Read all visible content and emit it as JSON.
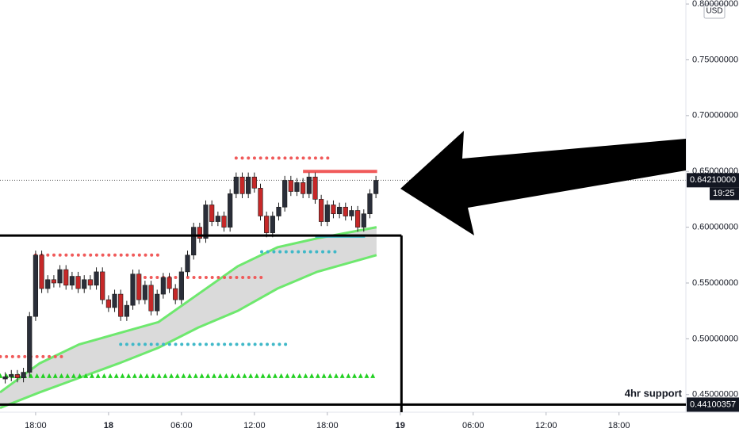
{
  "chart_data": {
    "type": "candlestick",
    "currency": "USD",
    "annotation": "4hr support",
    "last_price": {
      "value": 0.6421,
      "label": "0.64210000"
    },
    "countdown": "19:25",
    "support": {
      "value": 0.44100357,
      "label": "0.44100357"
    },
    "box_top": 0.5925,
    "box_right_x": 30.1,
    "up_color": "#2a2e39",
    "down_color": "#c62828",
    "ylim": [
      0.4342,
      0.8036
    ],
    "yticks": [
      {
        "value": 0.45,
        "label": "0.45000000"
      },
      {
        "value": 0.5,
        "label": "0.50000000"
      },
      {
        "value": 0.55,
        "label": "0.55000000"
      },
      {
        "value": 0.6,
        "label": "0.60000000"
      },
      {
        "value": 0.65,
        "label": "0.65000000"
      },
      {
        "value": 0.7,
        "label": "0.70000000"
      },
      {
        "value": 0.75,
        "label": "0.75000000"
      },
      {
        "value": 0.8,
        "label": "0.80000000"
      }
    ],
    "xlim": [
      -2.93,
      53.5
    ],
    "xticks": [
      {
        "value": 0,
        "label": "18:00"
      },
      {
        "value": 6,
        "label": "18"
      },
      {
        "value": 12,
        "label": "06:00"
      },
      {
        "value": 18,
        "label": "12:00"
      },
      {
        "value": 24,
        "label": "18:00"
      },
      {
        "value": 30,
        "label": "19"
      },
      {
        "value": 36,
        "label": "06:00"
      },
      {
        "value": 42,
        "label": "12:00"
      },
      {
        "value": 48,
        "label": "18:00"
      }
    ],
    "x": [
      -2.5,
      -2,
      -1.5,
      -1,
      -0.5,
      0,
      0.5,
      1,
      1.5,
      2,
      2.5,
      3,
      3.5,
      4,
      4.5,
      5,
      5.5,
      6,
      6.5,
      7,
      7.5,
      8,
      8.5,
      9,
      9.5,
      10,
      10.5,
      11,
      11.5,
      12,
      12.5,
      13,
      13.5,
      14,
      14.5,
      15,
      15.5,
      16,
      16.5,
      17,
      17.5,
      18,
      18.5,
      19,
      19.5,
      20,
      20.5,
      21,
      21.5,
      22,
      22.5,
      23,
      23.5,
      24,
      24.5,
      25,
      25.5,
      26,
      26.5,
      27,
      27.5,
      28
    ],
    "open": [
      0.464,
      0.466,
      0.468,
      0.465,
      0.47,
      0.52,
      0.575,
      0.545,
      0.553,
      0.55,
      0.562,
      0.548,
      0.556,
      0.545,
      0.553,
      0.548,
      0.56,
      0.535,
      0.528,
      0.54,
      0.52,
      0.53,
      0.558,
      0.535,
      0.548,
      0.525,
      0.54,
      0.555,
      0.545,
      0.535,
      0.56,
      0.575,
      0.6,
      0.59,
      0.62,
      0.605,
      0.61,
      0.6,
      0.63,
      0.645,
      0.63,
      0.645,
      0.635,
      0.61,
      0.595,
      0.61,
      0.618,
      0.642,
      0.632,
      0.64,
      0.63,
      0.645,
      0.625,
      0.605,
      0.62,
      0.612,
      0.618,
      0.61,
      0.615,
      0.6,
      0.612,
      0.63
    ],
    "high": [
      0.47,
      0.472,
      0.472,
      0.474,
      0.524,
      0.579,
      0.579,
      0.557,
      0.557,
      0.566,
      0.566,
      0.56,
      0.56,
      0.557,
      0.557,
      0.564,
      0.564,
      0.539,
      0.544,
      0.544,
      0.534,
      0.562,
      0.562,
      0.552,
      0.552,
      0.544,
      0.559,
      0.559,
      0.549,
      0.564,
      0.579,
      0.604,
      0.604,
      0.624,
      0.624,
      0.614,
      0.614,
      0.634,
      0.649,
      0.649,
      0.649,
      0.649,
      0.639,
      0.614,
      0.614,
      0.622,
      0.646,
      0.646,
      0.644,
      0.644,
      0.649,
      0.649,
      0.629,
      0.624,
      0.624,
      0.622,
      0.622,
      0.619,
      0.619,
      0.616,
      0.634,
      0.646
    ],
    "low": [
      0.46,
      0.462,
      0.461,
      0.461,
      0.466,
      0.516,
      0.541,
      0.541,
      0.546,
      0.546,
      0.544,
      0.544,
      0.541,
      0.541,
      0.544,
      0.544,
      0.531,
      0.524,
      0.524,
      0.516,
      0.516,
      0.526,
      0.531,
      0.531,
      0.521,
      0.521,
      0.536,
      0.541,
      0.531,
      0.531,
      0.556,
      0.571,
      0.586,
      0.586,
      0.601,
      0.601,
      0.596,
      0.596,
      0.626,
      0.626,
      0.626,
      0.631,
      0.606,
      0.591,
      0.591,
      0.606,
      0.614,
      0.628,
      0.628,
      0.626,
      0.626,
      0.621,
      0.601,
      0.601,
      0.608,
      0.608,
      0.606,
      0.606,
      0.596,
      0.596,
      0.608,
      0.626
    ],
    "close": [
      0.466,
      0.468,
      0.465,
      0.47,
      0.52,
      0.575,
      0.545,
      0.553,
      0.55,
      0.562,
      0.548,
      0.556,
      0.545,
      0.553,
      0.548,
      0.56,
      0.535,
      0.528,
      0.54,
      0.52,
      0.53,
      0.558,
      0.535,
      0.548,
      0.525,
      0.54,
      0.555,
      0.545,
      0.535,
      0.56,
      0.575,
      0.6,
      0.59,
      0.62,
      0.605,
      0.61,
      0.6,
      0.63,
      0.645,
      0.63,
      0.645,
      0.635,
      0.61,
      0.595,
      0.61,
      0.618,
      0.642,
      0.632,
      0.64,
      0.63,
      0.645,
      0.625,
      0.605,
      0.62,
      0.612,
      0.618,
      0.61,
      0.615,
      0.6,
      0.612,
      0.63,
      0.642
    ],
    "cloud": {
      "x": [
        -2.93,
        0.33,
        3.59,
        6.85,
        10.11,
        13.37,
        16.63,
        19.9,
        23.16,
        28.05
      ],
      "upper": [
        0.452,
        0.478,
        0.495,
        0.505,
        0.515,
        0.54,
        0.565,
        0.582,
        0.59,
        0.6
      ],
      "lower": [
        0.438,
        0.452,
        0.465,
        0.478,
        0.492,
        0.51,
        0.525,
        0.545,
        0.56,
        0.575
      ],
      "color": "#6ee86e"
    },
    "levels": [
      {
        "value": 0.662,
        "x": [
          16.5,
          24.1
        ],
        "color": "#f05a5a",
        "style": "dots"
      },
      {
        "value": 0.575,
        "x": [
          0,
          10.1
        ],
        "color": "#f05a5a",
        "style": "dots"
      },
      {
        "value": 0.555,
        "x": [
          8,
          18.6
        ],
        "color": "#f05a5a",
        "style": "dots"
      },
      {
        "value": 0.484,
        "x": [
          -2.9,
          2.15
        ],
        "color": "#f05a5a",
        "style": "dots"
      },
      {
        "value": 0.578,
        "x": [
          18.6,
          25.1
        ],
        "color": "#3fb8c8",
        "style": "dots"
      },
      {
        "value": 0.495,
        "x": [
          7,
          20.7
        ],
        "color": "#3fb8c8",
        "style": "dots"
      },
      {
        "value": 0.467,
        "x": [
          -2.9,
          28.2
        ],
        "color": "#22d022",
        "style": "triangles"
      },
      {
        "value": 0.65,
        "x": [
          22,
          28.1
        ],
        "color": "#f05a5a",
        "style": "line"
      },
      {
        "value": 0.592,
        "x": [
          23,
          27.1
        ],
        "color": "#3fb8c8",
        "style": "line"
      }
    ]
  }
}
